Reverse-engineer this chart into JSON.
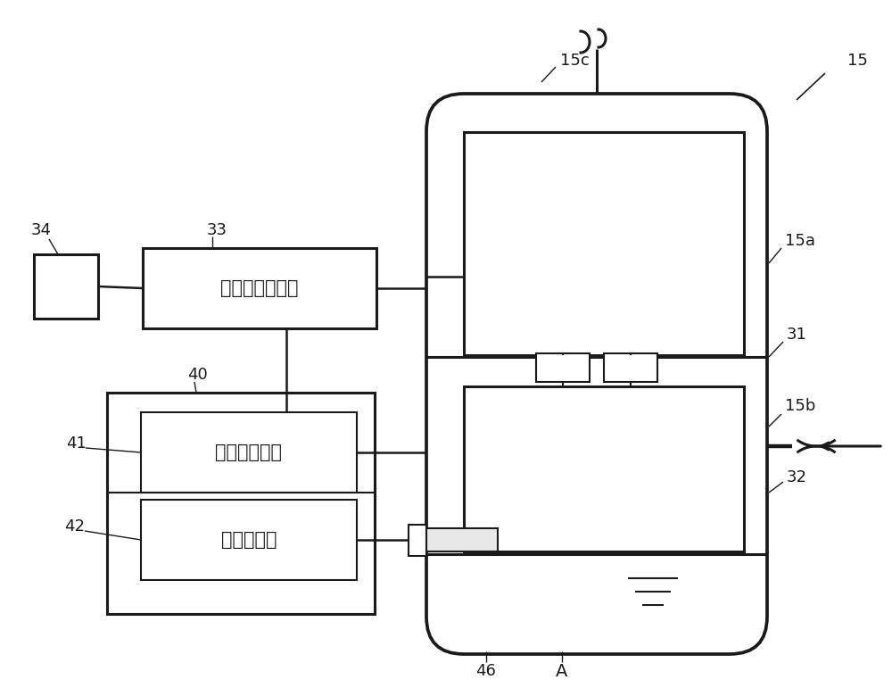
{
  "bg_color": "#ffffff",
  "line_color": "#1a1a1a",
  "lw_main": 2.2,
  "lw_thin": 1.5,
  "lw_conn": 1.8,
  "font_size_label": 15,
  "font_size_ref": 13,
  "labels": {
    "motor_driver": "电动机驱动电路",
    "compressor_ctrl": "压缩机控制部",
    "oil_detect": "油位检测部"
  },
  "refs": {
    "r15": "15",
    "r15a": "15a",
    "r15b": "15b",
    "r15c": "15c",
    "r31": "31",
    "r32": "32",
    "r33": "33",
    "r34": "34",
    "r40": "40",
    "r41": "41",
    "r42": "42",
    "r46": "46",
    "rA": "A"
  }
}
